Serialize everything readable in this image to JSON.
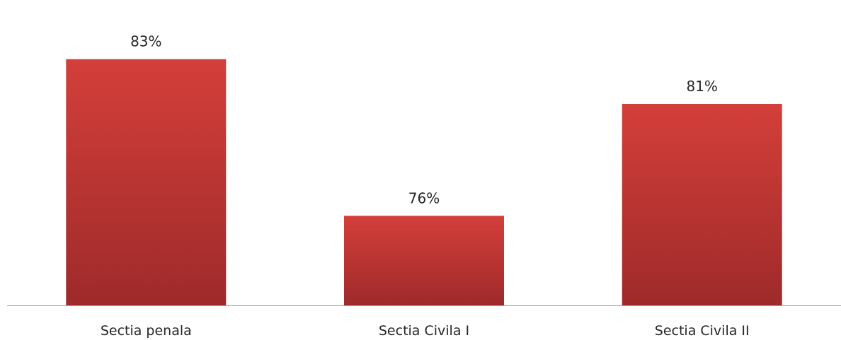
{
  "chart_data": {
    "type": "bar",
    "categories": [
      "Sectia penala",
      "Sectia Civila I",
      "Sectia Civila II"
    ],
    "values": [
      83,
      76,
      81
    ],
    "value_labels": [
      "83%",
      "76%",
      "81%"
    ],
    "unit": "%",
    "ylim": [
      72,
      84
    ],
    "grid": false,
    "legend": "none",
    "axes_visible": {
      "x_axis_line": true,
      "y_axis": false
    },
    "colors": {
      "bar_top": "#d43f3a",
      "bar_bottom": "#9e2a2a",
      "axis_line": "#a6a6a6",
      "text": "#262626"
    }
  }
}
